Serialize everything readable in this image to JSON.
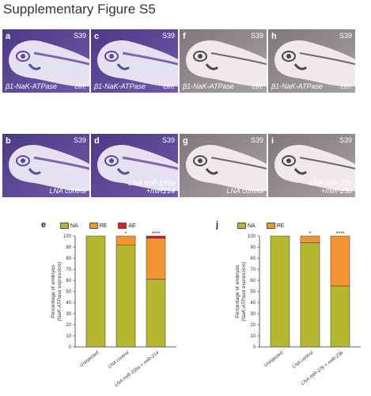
{
  "figure": {
    "title": "Supplementary Figure S5"
  },
  "panels": [
    {
      "letter": "a",
      "stage": "S39",
      "gene": "β1-NaK-ATPase",
      "condition": "ctrl.",
      "tone": "purple"
    },
    {
      "letter": "c",
      "stage": "S39",
      "gene": "β1-NaK-ATPase",
      "condition": "ctrl.",
      "tone": "purple"
    },
    {
      "letter": "f",
      "stage": "S39",
      "gene": "β1-NaK-ATPase",
      "condition": "ctrl.",
      "tone": "grey"
    },
    {
      "letter": "h",
      "stage": "S39",
      "gene": "β1-NaK-ATPase",
      "condition": "ctrl.",
      "tone": "grey"
    },
    {
      "letter": "b",
      "stage": "S39",
      "gene": "",
      "condition": "LNA control",
      "tone": "purple"
    },
    {
      "letter": "d",
      "stage": "S39",
      "gene": "",
      "condition": "LNA miR-199a\n+miR214",
      "tone": "purple"
    },
    {
      "letter": "g",
      "stage": "S39",
      "gene": "",
      "condition": "LNA control",
      "tone": "grey"
    },
    {
      "letter": "i",
      "stage": "S39",
      "gene": "",
      "condition": "LNA miR-27b\n+miR-23b",
      "tone": "grey"
    }
  ],
  "colors": {
    "NA": "#b5b72e",
    "RE": "#f39433",
    "AE": "#d8232a",
    "purple": "#7a68b4",
    "grey": "#c7c3c5"
  },
  "chart_data": [
    {
      "panel": "e",
      "type": "bar",
      "stacked": true,
      "ylabel": "Percentage of embryos\n(NaK-ATPase expression)",
      "ylim": [
        0,
        100
      ],
      "yticks": [
        "0",
        "10",
        "20",
        "30",
        "40",
        "50",
        "60",
        "70",
        "80",
        "90",
        "100"
      ],
      "legend": [
        "NA",
        "RE",
        "AE"
      ],
      "categories": [
        "Uninjected",
        "LNA control",
        "LNA miR-199a + miR-214"
      ],
      "series": [
        {
          "name": "NA",
          "values": [
            100,
            92,
            61
          ]
        },
        {
          "name": "RE",
          "values": [
            0,
            8,
            37
          ]
        },
        {
          "name": "AE",
          "values": [
            0,
            0,
            2
          ]
        }
      ],
      "significance": [
        "",
        "*",
        "****"
      ]
    },
    {
      "panel": "j",
      "type": "bar",
      "stacked": true,
      "ylabel": "Percentage of embryos\n(NaK-ATPase expression)",
      "ylim": [
        0,
        100
      ],
      "yticks": [
        "0",
        "10",
        "20",
        "30",
        "40",
        "50",
        "60",
        "70",
        "80",
        "90",
        "100"
      ],
      "legend": [
        "NA",
        "RE"
      ],
      "categories": [
        "Uninjected",
        "LNA control",
        "LNA miR-27b + miR-23b"
      ],
      "series": [
        {
          "name": "NA",
          "values": [
            100,
            94,
            55
          ]
        },
        {
          "name": "RE",
          "values": [
            0,
            6,
            45
          ]
        }
      ],
      "significance": [
        "",
        "*",
        "****"
      ]
    }
  ]
}
